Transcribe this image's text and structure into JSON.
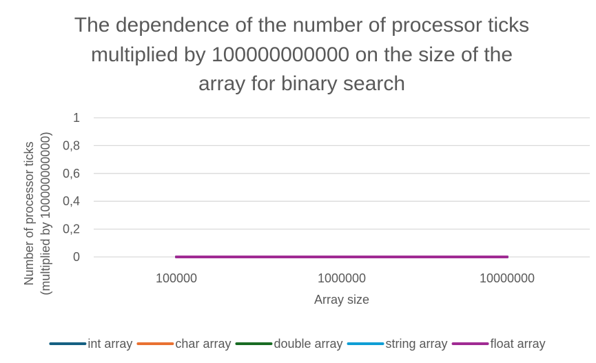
{
  "chart_data": {
    "type": "line",
    "title_lines": [
      "The dependence of the number of processor ticks",
      "multiplied by 100000000000 on the size of the",
      "array for binary search"
    ],
    "xlabel": "Array size",
    "ylabel_lines": [
      "Number of processor ticks",
      "(multiplied by 100000000000)"
    ],
    "categories": [
      "100000",
      "1000000",
      "10000000"
    ],
    "ylim": [
      0,
      1
    ],
    "y_ticks": [
      0,
      0.2,
      0.4,
      0.6,
      0.8,
      1
    ],
    "y_tick_labels": [
      "0",
      "0,2",
      "0,4",
      "0,6",
      "0,8",
      "1"
    ],
    "grid": true,
    "legend_position": "bottom",
    "series": [
      {
        "name": "int array",
        "color": "#156082",
        "values": [
          0,
          0,
          0
        ]
      },
      {
        "name": "char array",
        "color": "#e97132",
        "values": [
          0,
          0,
          0
        ]
      },
      {
        "name": "double array",
        "color": "#196b24",
        "values": [
          0,
          0,
          0
        ]
      },
      {
        "name": "string array",
        "color": "#0f9ed5",
        "values": [
          0,
          0,
          0
        ]
      },
      {
        "name": "float array",
        "color": "#a02b93",
        "values": [
          0,
          0,
          0
        ]
      }
    ]
  }
}
